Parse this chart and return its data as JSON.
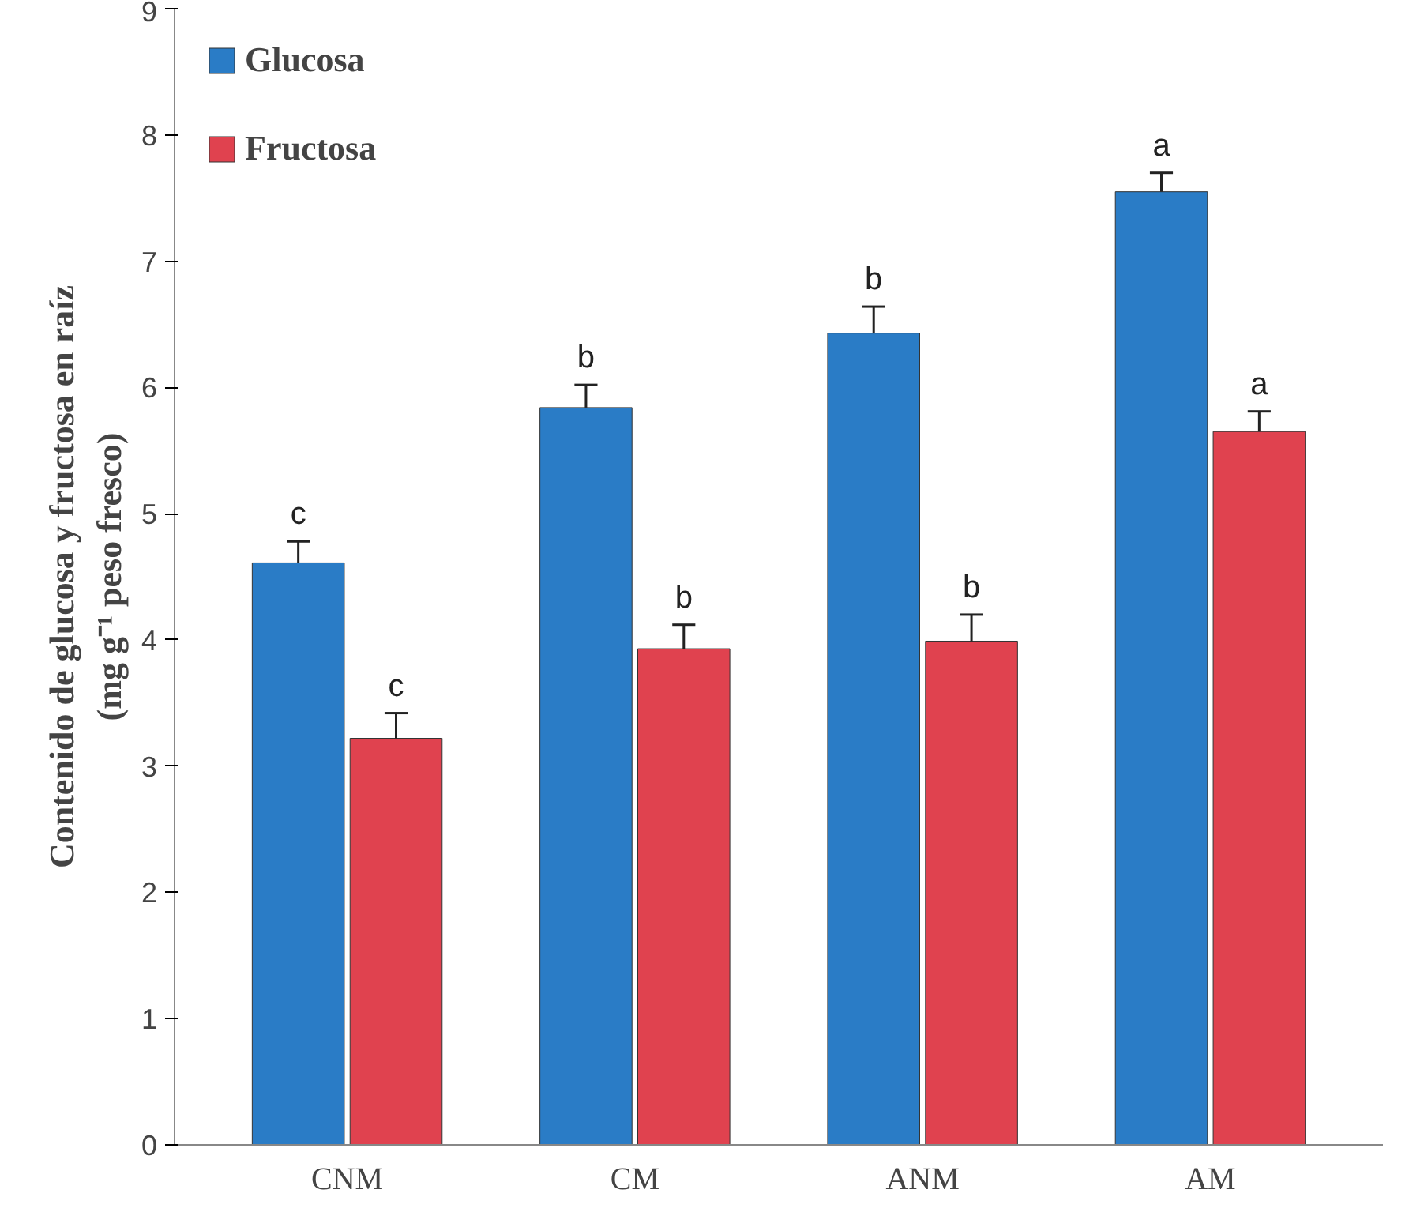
{
  "chart_data": {
    "type": "bar",
    "ylabel": "Contenido de glucosa y fructosa en raíz\n(mg g⁻¹ peso fresco)",
    "categories": [
      "CNM",
      "CM",
      "ANM",
      "AM"
    ],
    "series": [
      {
        "name": "Glucosa",
        "color": "#2a7cc6",
        "values": [
          4.61,
          5.84,
          6.43,
          7.55
        ],
        "errors": [
          0.17,
          0.18,
          0.21,
          0.15
        ],
        "value_labels": [
          "c",
          "b",
          "b",
          "a"
        ]
      },
      {
        "name": "Fructosa",
        "color": "#e0424f",
        "values": [
          3.22,
          3.93,
          3.99,
          5.65
        ],
        "errors": [
          0.2,
          0.19,
          0.21,
          0.16
        ],
        "value_labels": [
          "c",
          "b",
          "b",
          "a"
        ]
      }
    ],
    "ylim": [
      0,
      9
    ],
    "yticks": [
      0,
      1,
      2,
      3,
      4,
      5,
      6,
      7,
      8,
      9
    ],
    "grid": false,
    "legend": "top left"
  }
}
